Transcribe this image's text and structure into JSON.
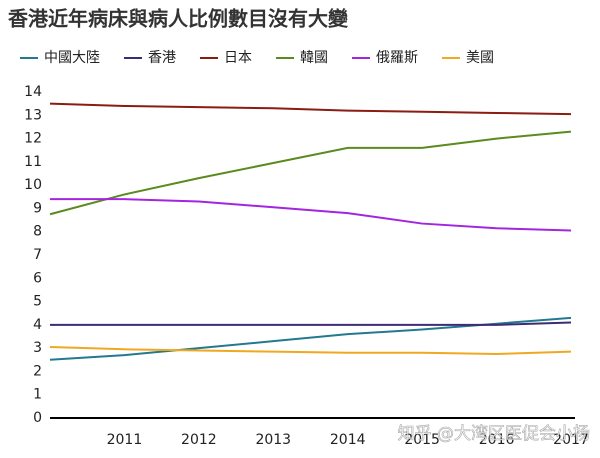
{
  "chart_data": {
    "type": "line",
    "title": "香港近年病床與病人比例數目沒有大變",
    "x": [
      2010,
      2011,
      2012,
      2013,
      2014,
      2015,
      2016,
      2017
    ],
    "xlim": [
      2010,
      2017
    ],
    "xticks": [
      2011,
      2012,
      2013,
      2014,
      2015,
      2016,
      2017
    ],
    "ylim": [
      0,
      14
    ],
    "yticks": [
      0,
      1,
      2,
      3,
      4,
      5,
      6,
      7,
      8,
      9,
      10,
      11,
      12,
      13,
      14
    ],
    "grid": false,
    "legend": "top",
    "series": [
      {
        "name": "中國大陸",
        "color": "#23798f",
        "values": [
          2.5,
          2.7,
          3.0,
          3.3,
          3.6,
          3.8,
          4.05,
          4.3
        ]
      },
      {
        "name": "香港",
        "color": "#3d2b73",
        "values": [
          4.0,
          4.0,
          4.0,
          4.0,
          4.0,
          4.0,
          4.0,
          4.1
        ]
      },
      {
        "name": "日本",
        "color": "#8a1c12",
        "values": [
          13.5,
          13.4,
          13.35,
          13.3,
          13.2,
          13.15,
          13.1,
          13.05
        ]
      },
      {
        "name": "韓國",
        "color": "#5b8a1f",
        "values": [
          8.75,
          9.6,
          10.3,
          10.95,
          11.6,
          11.6,
          12.0,
          12.3
        ]
      },
      {
        "name": "俄羅斯",
        "color": "#a325e0",
        "values": [
          9.4,
          9.4,
          9.3,
          9.05,
          8.8,
          8.35,
          8.15,
          8.05
        ]
      },
      {
        "name": "美國",
        "color": "#f0a820",
        "values": [
          3.05,
          2.95,
          2.9,
          2.85,
          2.8,
          2.8,
          2.75,
          2.85
        ]
      }
    ],
    "watermark": "知乎 @大湾区医促会小杨"
  }
}
